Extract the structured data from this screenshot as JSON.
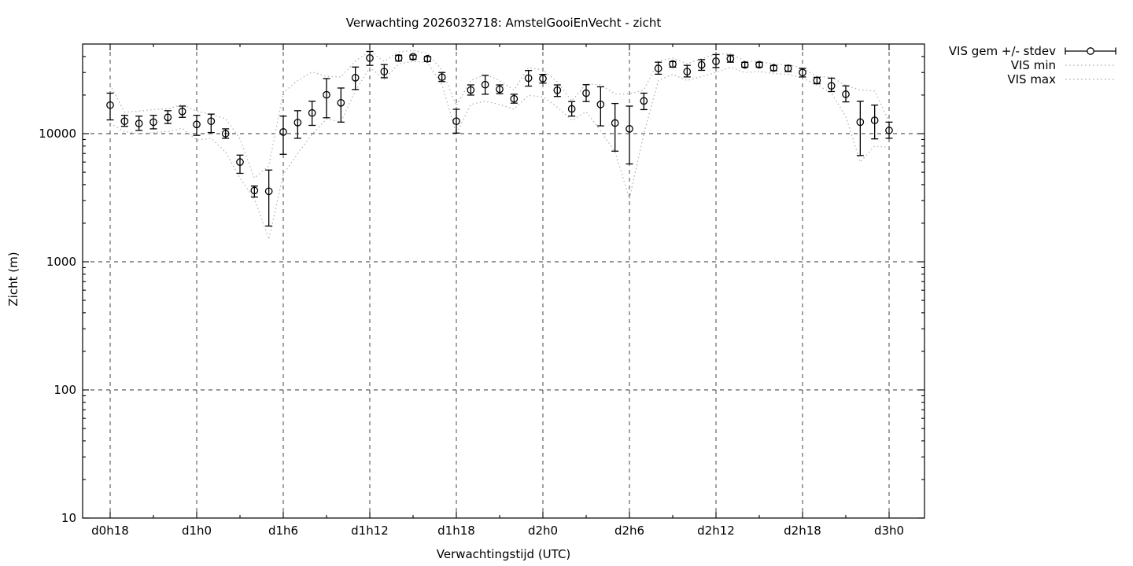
{
  "window": {
    "background": "#ffffff"
  },
  "chart_data": {
    "type": "line",
    "title": "Verwachting 2026032718: AmstelGooiEnVecht - zicht",
    "xlabel": "Verwachtingstijd (UTC)",
    "ylabel": "Zicht (m)",
    "y_scale": "log",
    "ylim": [
      10,
      50000
    ],
    "grid": "dashed-major",
    "ytick_values": [
      10,
      100,
      1000,
      10000
    ],
    "ytick_labels": [
      "10",
      "100",
      "1000",
      "10000"
    ],
    "xtick_hours": [
      0,
      6,
      12,
      18,
      24,
      30,
      36,
      42,
      48,
      54
    ],
    "xtick_labels": [
      "d0h18",
      "d1h0",
      "d1h6",
      "d1h12",
      "d1h18",
      "d2h0",
      "d2h6",
      "d2h12",
      "d2h18",
      "d3h0"
    ],
    "x_minor_step_hours": 3,
    "n_points": 55,
    "first_point": "d0h18",
    "last_point": "d3h0",
    "legend": {
      "position": "top-right-outside",
      "entries": [
        "VIS gem +/- stdev",
        "VIS min",
        "VIS max"
      ]
    },
    "colors": {
      "series": "#000000",
      "minmax": "#b8b8b8",
      "grid": "#333333"
    },
    "series": [
      {
        "name": "VIS gem +/- stdev",
        "style": "points-with-errorbars",
        "mean": [
          16700,
          12500,
          12000,
          12300,
          13400,
          14900,
          11800,
          12500,
          10000,
          6000,
          3600,
          3550,
          10300,
          12200,
          14500,
          20100,
          17400,
          27300,
          38900,
          30500,
          38900,
          39800,
          38400,
          27600,
          12500,
          21900,
          24100,
          22200,
          18700,
          27100,
          26900,
          21800,
          15600,
          20700,
          16900,
          12100,
          10900,
          18000,
          32300,
          34900,
          30500,
          34400,
          36700,
          38400,
          34400,
          34500,
          32600,
          32300,
          30000,
          26000,
          23600,
          20300,
          12300,
          12700,
          10600
        ],
        "stdev_lo": [
          12800,
          11400,
          10600,
          10900,
          12000,
          13400,
          9700,
          10200,
          9200,
          4900,
          3200,
          1900,
          6900,
          9200,
          11600,
          13300,
          12300,
          22100,
          34100,
          27300,
          36900,
          38000,
          36500,
          25500,
          10100,
          20000,
          20300,
          20500,
          17300,
          23500,
          24800,
          19500,
          13700,
          17800,
          11500,
          7300,
          5800,
          15400,
          29100,
          33000,
          27700,
          31200,
          32800,
          36100,
          33000,
          33000,
          31000,
          30500,
          27700,
          24500,
          21300,
          17700,
          6750,
          9100,
          9200
        ],
        "stdev_hi": [
          20700,
          13900,
          13700,
          13900,
          15100,
          16400,
          13900,
          14200,
          10900,
          6800,
          3900,
          5200,
          13700,
          15100,
          17900,
          26900,
          22700,
          33100,
          43800,
          34600,
          40900,
          41000,
          40000,
          30000,
          15500,
          24000,
          28500,
          24000,
          20300,
          31100,
          29000,
          24000,
          17800,
          24100,
          23200,
          17200,
          16400,
          20700,
          36100,
          36500,
          34100,
          37800,
          41400,
          41000,
          36000,
          36000,
          34000,
          34000,
          32300,
          27500,
          27100,
          23600,
          17900,
          16700,
          12300
        ]
      },
      {
        "name": "VIS min",
        "style": "dotted",
        "values": [
          12000,
          10400,
          10000,
          10200,
          10400,
          11000,
          8900,
          9200,
          7200,
          4500,
          3100,
          1500,
          4800,
          7000,
          9900,
          13000,
          12400,
          21500,
          32800,
          26600,
          35000,
          36700,
          35900,
          24100,
          10000,
          16900,
          17900,
          16900,
          15500,
          19900,
          19400,
          16100,
          12700,
          14800,
          10500,
          7200,
          3100,
          10000,
          26000,
          29000,
          26000,
          27900,
          30000,
          33000,
          30000,
          30500,
          29500,
          29000,
          27100,
          24000,
          20800,
          13600,
          6000,
          8000,
          7800
        ]
      },
      {
        "name": "VIS max",
        "style": "dotted",
        "values": [
          24000,
          14700,
          15000,
          15400,
          15600,
          16900,
          15000,
          14100,
          13100,
          9100,
          4500,
          5600,
          20900,
          25900,
          30300,
          28000,
          27700,
          36900,
          44000,
          36700,
          43400,
          44500,
          42300,
          31400,
          16500,
          26000,
          29000,
          26000,
          21900,
          32800,
          31400,
          25400,
          18000,
          24500,
          24000,
          20400,
          20400,
          21900,
          36900,
          38900,
          35000,
          38500,
          41500,
          42000,
          37000,
          36500,
          35000,
          34500,
          32500,
          28000,
          27500,
          23800,
          21900,
          21500,
          12400
        ]
      }
    ]
  }
}
